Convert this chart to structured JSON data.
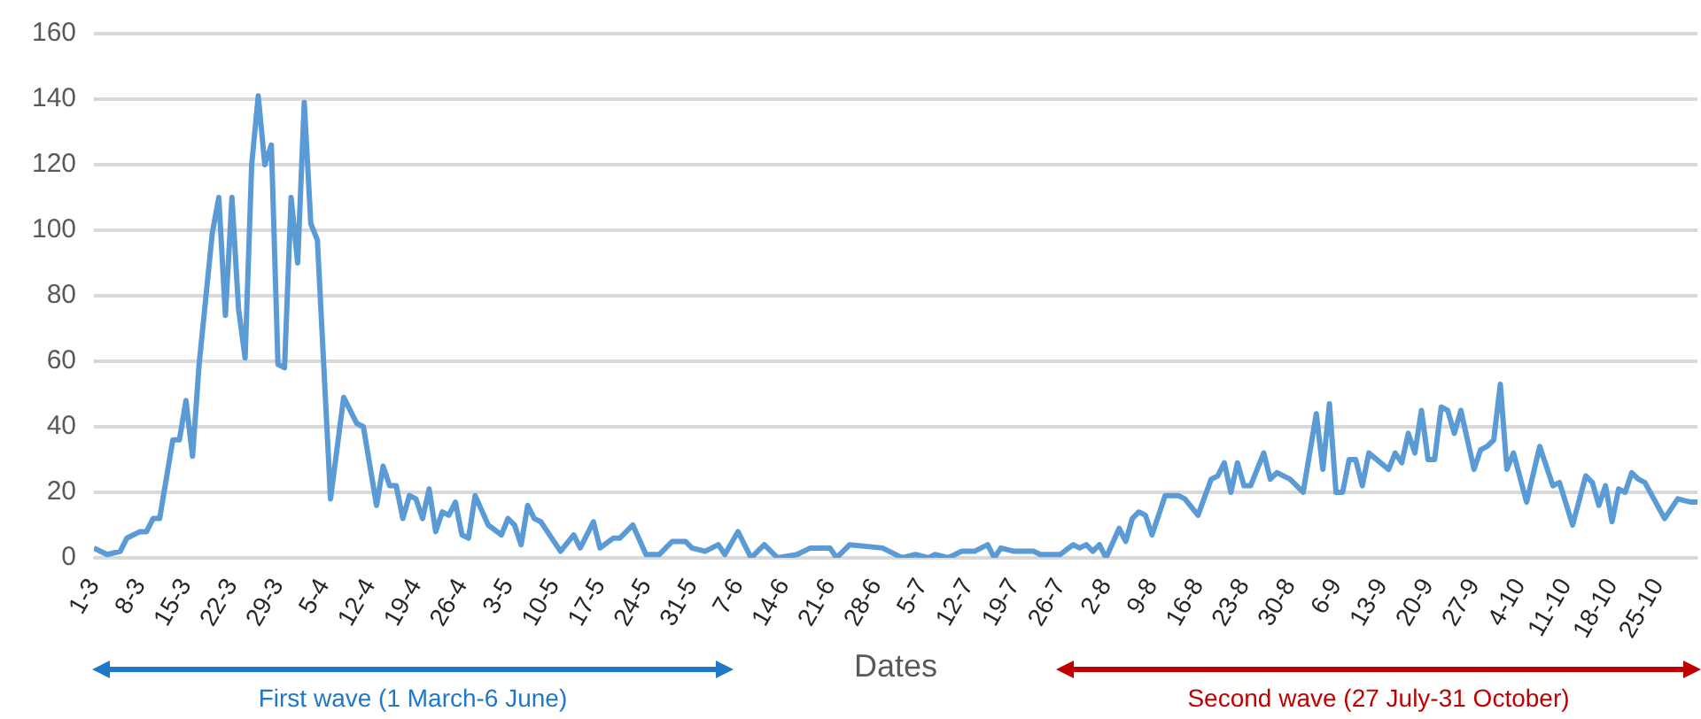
{
  "chart_data": {
    "type": "line",
    "xlabel": "Dates",
    "annotations": [
      "First wave (1 March-6 June)",
      "Second wave (27 July-31 October)"
    ],
    "x": [
      "--03-01",
      "--03-03",
      "--03-05",
      "--03-06",
      "--03-08",
      "--03-09",
      "--03-10",
      "--03-11",
      "--03-13",
      "--03-14",
      "--03-15",
      "--03-16",
      "--03-17",
      "--03-19",
      "--03-20",
      "--03-21",
      "--03-22",
      "--03-23",
      "--03-24",
      "--03-25",
      "--03-26",
      "--03-27",
      "--03-28",
      "--03-29",
      "--03-30",
      "--03-31",
      "--04-01",
      "--04-02",
      "--04-03",
      "--04-04",
      "--04-06",
      "--04-08",
      "--04-10",
      "--04-11",
      "--04-13",
      "--04-14",
      "--04-15",
      "--04-16",
      "--04-17",
      "--04-18",
      "--04-19",
      "--04-20",
      "--04-21",
      "--04-22",
      "--04-23",
      "--04-24",
      "--04-25",
      "--04-26",
      "--04-27",
      "--04-28",
      "--04-30",
      "--05-02",
      "--05-03",
      "--05-04",
      "--05-05",
      "--05-06",
      "--05-07",
      "--05-08",
      "--05-09",
      "--05-11",
      "--05-13",
      "--05-14",
      "--05-16",
      "--05-17",
      "--05-19",
      "--05-20",
      "--05-22",
      "--05-24",
      "--05-26",
      "--05-28",
      "--05-30",
      "--05-31",
      "--06-02",
      "--06-04",
      "--06-05",
      "--06-07",
      "--06-09",
      "--06-11",
      "--06-13",
      "--06-16",
      "--06-18",
      "--06-21",
      "--06-22",
      "--06-24",
      "--06-29",
      "--07-02",
      "--07-04",
      "--07-06",
      "--07-07",
      "--07-09",
      "--07-11",
      "--07-13",
      "--07-15",
      "--07-16",
      "--07-17",
      "--07-19",
      "--07-22",
      "--07-23",
      "--07-26",
      "--07-28",
      "--07-29",
      "--07-30",
      "--07-31",
      "--08-01",
      "--08-02",
      "--08-04",
      "--08-05",
      "--08-06",
      "--08-07",
      "--08-08",
      "--08-09",
      "--08-11",
      "--08-12",
      "--08-13",
      "--08-14",
      "--08-16",
      "--08-18",
      "--08-19",
      "--08-20",
      "--08-21",
      "--08-22",
      "--08-23",
      "--08-24",
      "--08-26",
      "--08-27",
      "--08-28",
      "--08-30",
      "--09-01",
      "--09-03",
      "--09-04",
      "--09-05",
      "--09-06",
      "--09-07",
      "--09-08",
      "--09-09",
      "--09-10",
      "--09-11",
      "--09-14",
      "--09-15",
      "--09-16",
      "--09-17",
      "--09-18",
      "--09-19",
      "--09-20",
      "--09-21",
      "--09-22",
      "--09-23",
      "--09-24",
      "--09-25",
      "--09-26",
      "--09-27",
      "--09-28",
      "--09-29",
      "--09-30",
      "--10-01",
      "--10-02",
      "--10-03",
      "--10-05",
      "--10-07",
      "--10-09",
      "--10-10",
      "--10-12",
      "--10-14",
      "--10-15",
      "--10-16",
      "--10-17",
      "--10-18",
      "--10-19",
      "--10-20",
      "--10-21",
      "--10-22",
      "--10-23",
      "--10-26",
      "--10-28",
      "--10-30",
      "--10-31"
    ],
    "series": [
      {
        "color": "#5b9bd5",
        "values": [
          3,
          1,
          2,
          6,
          8,
          8,
          12,
          12,
          36,
          36,
          48,
          31,
          59,
          99,
          110,
          74,
          110,
          76,
          61,
          120,
          141,
          120,
          126,
          59,
          58,
          110,
          90,
          139,
          102,
          97,
          18,
          49,
          41,
          40,
          16,
          28,
          22,
          22,
          12,
          19,
          18,
          12,
          21,
          8,
          14,
          13,
          17,
          7,
          6,
          19,
          10,
          7,
          12,
          10,
          4,
          16,
          12,
          11,
          8,
          2,
          7,
          3,
          11,
          3,
          6,
          6,
          10,
          1,
          1,
          5,
          5,
          3,
          2,
          4,
          1,
          8,
          0,
          4,
          0,
          1,
          3,
          3,
          0,
          4,
          3,
          0,
          1,
          0,
          1,
          0,
          2,
          2,
          4,
          0,
          3,
          2,
          2,
          1,
          1,
          4,
          3,
          4,
          2,
          4,
          0,
          9,
          5,
          12,
          14,
          13,
          7,
          19,
          19,
          19,
          18,
          13,
          24,
          25,
          29,
          20,
          29,
          22,
          22,
          32,
          24,
          26,
          24,
          20,
          44,
          27,
          47,
          20,
          20,
          30,
          30,
          22,
          32,
          27,
          32,
          29,
          38,
          32,
          45,
          30,
          30,
          46,
          45,
          38,
          45,
          36,
          27,
          33,
          34,
          36,
          53,
          27,
          32,
          17,
          34,
          22,
          23,
          10,
          25,
          23,
          16,
          22,
          11,
          21,
          20,
          26,
          24,
          23,
          12,
          18,
          17,
          17
        ]
      }
    ],
    "xlim": [
      "--03-01",
      "--10-31"
    ],
    "xticks": [
      {
        "value": "--03-01",
        "label": "1-3"
      },
      {
        "value": "--03-08",
        "label": "8-3"
      },
      {
        "value": "--03-15",
        "label": "15-3"
      },
      {
        "value": "--03-22",
        "label": "22-3"
      },
      {
        "value": "--03-29",
        "label": "29-3"
      },
      {
        "value": "--04-05",
        "label": "5-4"
      },
      {
        "value": "--04-12",
        "label": "12-4"
      },
      {
        "value": "--04-19",
        "label": "19-4"
      },
      {
        "value": "--04-26",
        "label": "26-4"
      },
      {
        "value": "--05-03",
        "label": "3-5"
      },
      {
        "value": "--05-10",
        "label": "10-5"
      },
      {
        "value": "--05-17",
        "label": "17-5"
      },
      {
        "value": "--05-24",
        "label": "24-5"
      },
      {
        "value": "--05-31",
        "label": "31-5"
      },
      {
        "value": "--06-07",
        "label": "7-6"
      },
      {
        "value": "--06-14",
        "label": "14-6"
      },
      {
        "value": "--06-21",
        "label": "21-6"
      },
      {
        "value": "--06-28",
        "label": "28-6"
      },
      {
        "value": "--07-05",
        "label": "5-7"
      },
      {
        "value": "--07-12",
        "label": "12-7"
      },
      {
        "value": "--07-19",
        "label": "19-7"
      },
      {
        "value": "--07-26",
        "label": "26-7"
      },
      {
        "value": "--08-02",
        "label": "2-8"
      },
      {
        "value": "--08-09",
        "label": "9-8"
      },
      {
        "value": "--08-16",
        "label": "16-8"
      },
      {
        "value": "--08-23",
        "label": "23-8"
      },
      {
        "value": "--08-30",
        "label": "30-8"
      },
      {
        "value": "--09-06",
        "label": "6-9"
      },
      {
        "value": "--09-13",
        "label": "13-9"
      },
      {
        "value": "--09-20",
        "label": "20-9"
      },
      {
        "value": "--09-27",
        "label": "27-9"
      },
      {
        "value": "--10-04",
        "label": "4-10"
      },
      {
        "value": "--10-11",
        "label": "11-10"
      },
      {
        "value": "--10-18",
        "label": "18-10"
      },
      {
        "value": "--10-25",
        "label": "25-10"
      }
    ],
    "ylim": [
      0,
      160
    ],
    "yticks": [
      0,
      20,
      40,
      60,
      80,
      100,
      120,
      140,
      160
    ],
    "grid": "y",
    "legend": false,
    "marker": "none",
    "line_style": "solid"
  }
}
